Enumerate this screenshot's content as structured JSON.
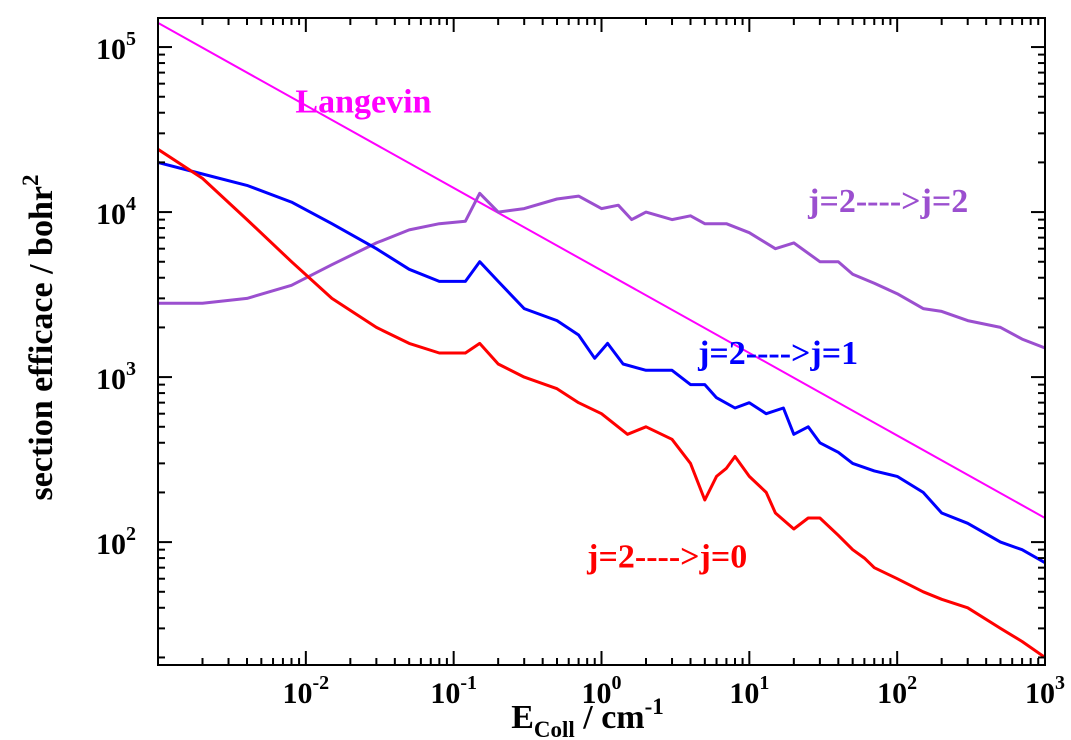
{
  "chart_data": {
    "type": "line",
    "title": "",
    "xlabel": {
      "main": "E",
      "sub": "Coll",
      "rest": " / cm",
      "sup": "-1"
    },
    "ylabel": {
      "main": "section efficace / bohr",
      "sup": "2"
    },
    "xscale": "log",
    "yscale": "log",
    "xlim": [
      0.001,
      1000
    ],
    "ylim": [
      18,
      150000
    ],
    "grid": false,
    "legend": "inline labels",
    "x_ticks": [
      {
        "value": 0.01,
        "base": "10",
        "exp": "-2"
      },
      {
        "value": 0.1,
        "base": "10",
        "exp": "-1"
      },
      {
        "value": 1,
        "base": "10",
        "exp": "0"
      },
      {
        "value": 10,
        "base": "10",
        "exp": "1"
      },
      {
        "value": 100,
        "base": "10",
        "exp": "2"
      },
      {
        "value": 1000,
        "base": "10",
        "exp": "3"
      }
    ],
    "y_ticks": [
      {
        "value": 100,
        "base": "10",
        "exp": "2"
      },
      {
        "value": 1000,
        "base": "10",
        "exp": "3"
      },
      {
        "value": 10000,
        "base": "10",
        "exp": "4"
      },
      {
        "value": 100000,
        "base": "10",
        "exp": "5"
      }
    ],
    "series": [
      {
        "name": "Langevin",
        "color": "#ff00ff",
        "label_x": 0.0085,
        "label_y": 40000,
        "x": [
          0.001,
          1000
        ],
        "y": [
          140000,
          140
        ]
      },
      {
        "name": "j=2---->j=2",
        "color": "#9b4fcf",
        "label_x": 25,
        "label_y": 10000,
        "x": [
          0.001,
          0.002,
          0.004,
          0.008,
          0.015,
          0.03,
          0.05,
          0.08,
          0.12,
          0.15,
          0.2,
          0.3,
          0.5,
          0.7,
          1,
          1.3,
          1.6,
          2,
          3,
          4,
          5,
          7,
          10,
          15,
          20,
          30,
          40,
          50,
          70,
          100,
          150,
          200,
          300,
          500,
          700,
          1000
        ],
        "y": [
          2800,
          2800,
          3000,
          3600,
          4800,
          6500,
          7800,
          8500,
          8800,
          13000,
          10000,
          10500,
          12000,
          12500,
          10500,
          11000,
          9000,
          10000,
          9000,
          9500,
          8500,
          8500,
          7500,
          6000,
          6500,
          5000,
          5000,
          4200,
          3700,
          3200,
          2600,
          2500,
          2200,
          2000,
          1700,
          1500
        ]
      },
      {
        "name": "j=2---->j=1",
        "color": "#0000ff",
        "label_x": 4.5,
        "label_y": 1200,
        "x": [
          0.001,
          0.002,
          0.004,
          0.008,
          0.015,
          0.03,
          0.05,
          0.08,
          0.12,
          0.15,
          0.2,
          0.3,
          0.5,
          0.7,
          0.9,
          1.1,
          1.4,
          2,
          3,
          4,
          5,
          6,
          8,
          10,
          13,
          17,
          20,
          25,
          30,
          40,
          50,
          70,
          100,
          150,
          200,
          300,
          500,
          700,
          1000
        ],
        "y": [
          20000,
          17000,
          14500,
          11500,
          8500,
          6000,
          4500,
          3800,
          3800,
          5000,
          3800,
          2600,
          2200,
          1800,
          1300,
          1600,
          1200,
          1100,
          1100,
          900,
          900,
          750,
          650,
          700,
          600,
          650,
          450,
          500,
          400,
          350,
          300,
          270,
          250,
          200,
          150,
          130,
          100,
          90,
          75
        ]
      },
      {
        "name": "j=2---->j=0",
        "color": "#ff0000",
        "label_x": 0.8,
        "label_y": 70,
        "x": [
          0.001,
          0.002,
          0.004,
          0.008,
          0.015,
          0.03,
          0.05,
          0.08,
          0.12,
          0.15,
          0.2,
          0.3,
          0.5,
          0.7,
          1,
          1.5,
          2,
          3,
          4,
          5,
          6,
          7,
          8,
          10,
          13,
          15,
          20,
          25,
          30,
          40,
          50,
          60,
          70,
          100,
          150,
          200,
          300,
          500,
          700,
          1000
        ],
        "y": [
          24000,
          16000,
          9000,
          5000,
          3000,
          2000,
          1600,
          1400,
          1400,
          1600,
          1200,
          1000,
          850,
          700,
          600,
          450,
          500,
          420,
          300,
          180,
          250,
          280,
          330,
          250,
          200,
          150,
          120,
          140,
          140,
          110,
          90,
          80,
          70,
          60,
          50,
          45,
          40,
          30,
          25,
          20
        ]
      }
    ]
  }
}
